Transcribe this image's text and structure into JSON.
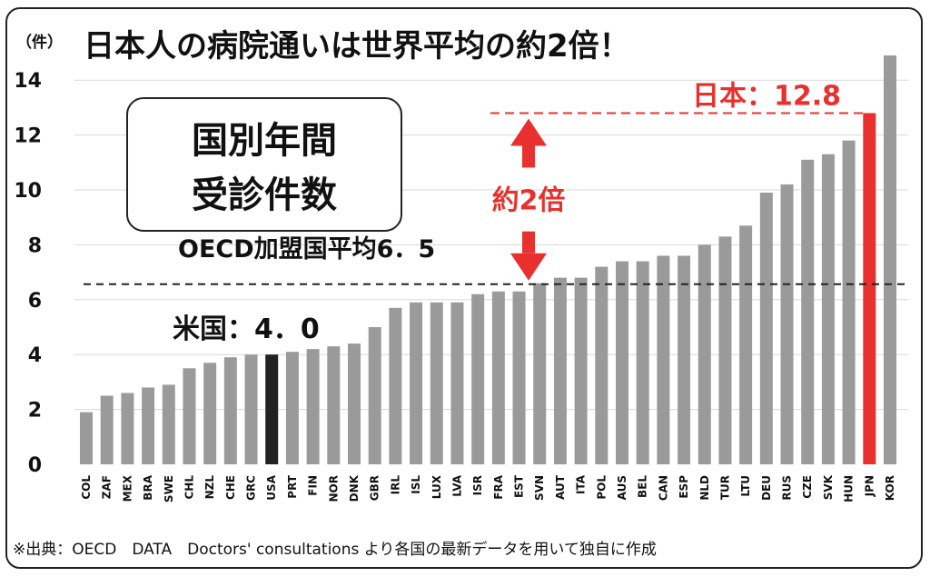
{
  "chart_data": {
    "type": "bar",
    "title": "日本人の病院通いは世界平均の約2倍！",
    "unit_label": "（件）",
    "inset_label_line1": "国別年間",
    "inset_label_line2": "受診件数",
    "ylim": [
      0,
      15
    ],
    "yticks": [
      0,
      2,
      4,
      6,
      8,
      10,
      12,
      14
    ],
    "grid": true,
    "categories": [
      "COL",
      "ZAF",
      "MEX",
      "BRA",
      "SWE",
      "CHL",
      "NZL",
      "CHE",
      "GRC",
      "USA",
      "PRT",
      "FIN",
      "NOR",
      "DNK",
      "GBR",
      "IRL",
      "ISL",
      "LUX",
      "LVA",
      "ISR",
      "FRA",
      "EST",
      "SVN",
      "AUT",
      "ITA",
      "POL",
      "AUS",
      "BEL",
      "CAN",
      "ESP",
      "NLD",
      "TUR",
      "LTU",
      "DEU",
      "RUS",
      "CZE",
      "SVK",
      "HUN",
      "JPN",
      "KOR"
    ],
    "values": [
      1.9,
      2.5,
      2.6,
      2.8,
      2.9,
      3.5,
      3.7,
      3.9,
      4.0,
      4.0,
      4.1,
      4.2,
      4.3,
      4.4,
      5.0,
      5.7,
      5.9,
      5.9,
      5.9,
      6.2,
      6.3,
      6.3,
      6.6,
      6.8,
      6.8,
      7.2,
      7.4,
      7.4,
      7.6,
      7.6,
      8.0,
      8.3,
      8.7,
      9.9,
      10.2,
      11.1,
      11.3,
      11.8,
      12.8,
      14.9
    ],
    "highlight": {
      "USA": "#222222",
      "JPN": "#e8312f"
    },
    "bar_color": "#9a9a9a",
    "oecd_average": 6.5,
    "oecd_label": "OECD加盟国平均6．5",
    "usa_label": "米国：4．0",
    "japan_label": "日本：12.8",
    "ratio_label": "約2倍",
    "accent_color": "#e8312f",
    "source": "※出典：OECD　DATA　Doctors' consultations より各国の最新データを用いて独自に作成"
  }
}
